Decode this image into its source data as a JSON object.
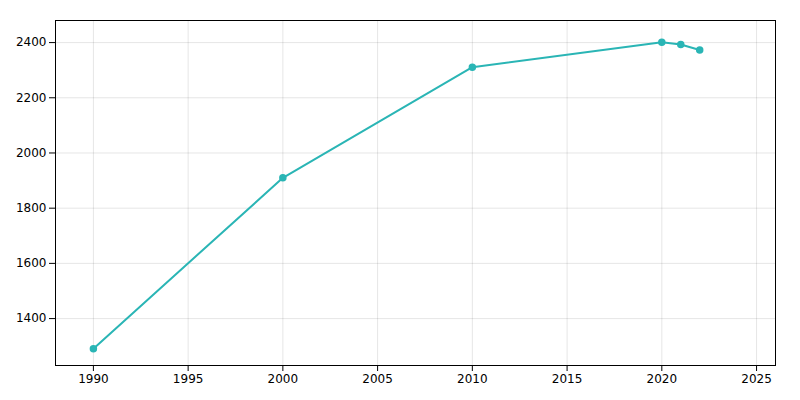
{
  "chart_data": {
    "type": "line",
    "x": [
      1990,
      2000,
      2010,
      2020,
      2021,
      2022
    ],
    "values": [
      1291,
      1910,
      2311,
      2401,
      2393,
      2373
    ],
    "color": "#2ab5b5",
    "marker": "circle",
    "line_style": "solid",
    "xlim": [
      1988,
      2026
    ],
    "ylim": [
      1230,
      2480
    ],
    "xticks": [
      1990,
      1995,
      2000,
      2005,
      2010,
      2015,
      2020,
      2025
    ],
    "yticks": [
      1400,
      1600,
      1800,
      2000,
      2200,
      2400
    ],
    "grid": true
  }
}
